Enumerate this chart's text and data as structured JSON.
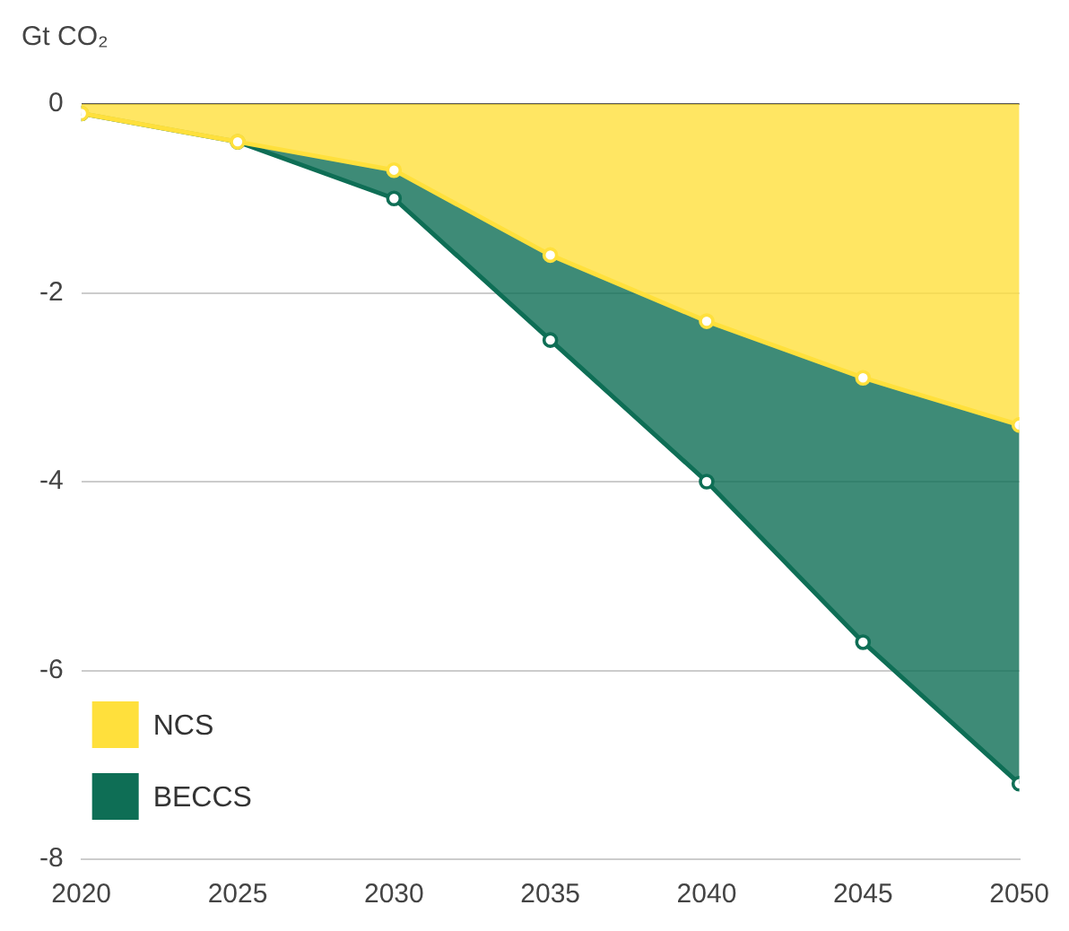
{
  "chart_data": {
    "type": "area",
    "ylabel": "Gt CO₂",
    "stacked": true,
    "x": [
      2020,
      2025,
      2030,
      2035,
      2040,
      2045,
      2050
    ],
    "series": [
      {
        "name": "NCS",
        "color": "#ffe03c",
        "values": [
          -0.1,
          -0.4,
          -0.7,
          -1.6,
          -2.3,
          -2.9,
          -3.4
        ]
      },
      {
        "name": "BECCS",
        "color": "#0e6e55",
        "values": [
          0,
          0,
          -0.3,
          -0.9,
          -1.7,
          -2.8,
          -3.8
        ]
      }
    ],
    "xlim": [
      2020,
      2050
    ],
    "xticks": [
      2020,
      2025,
      2030,
      2035,
      2040,
      2045,
      2050
    ],
    "ylim": [
      -8,
      0
    ],
    "yticks": [
      -8,
      -6,
      -4,
      -2,
      0
    ],
    "grid": "y",
    "legend": "bottom left",
    "marker": "circle",
    "line_style": "solid"
  }
}
